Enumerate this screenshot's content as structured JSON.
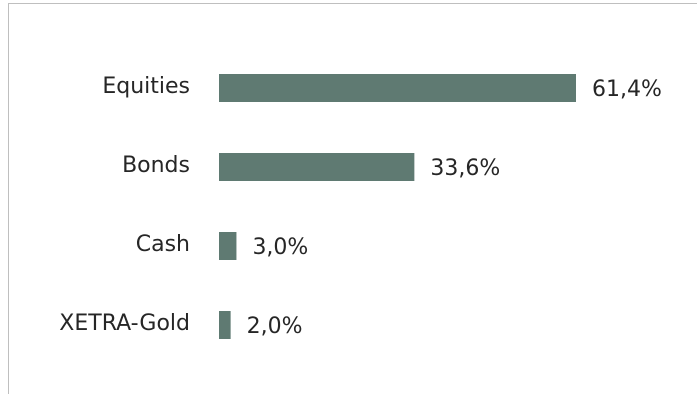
{
  "chart_data": {
    "type": "bar",
    "orientation": "horizontal",
    "categories": [
      "Equities",
      "Bonds",
      "Cash",
      "XETRA-Gold"
    ],
    "values": [
      61.4,
      33.6,
      3.0,
      2.0
    ],
    "value_labels": [
      "61,4%",
      "33,6%",
      "3,0%",
      "2,0%"
    ],
    "unit": "%",
    "xlim": [
      0,
      61.4
    ],
    "grid": false,
    "legend": "none",
    "colors": {
      "bar": "#5f7a72"
    }
  }
}
